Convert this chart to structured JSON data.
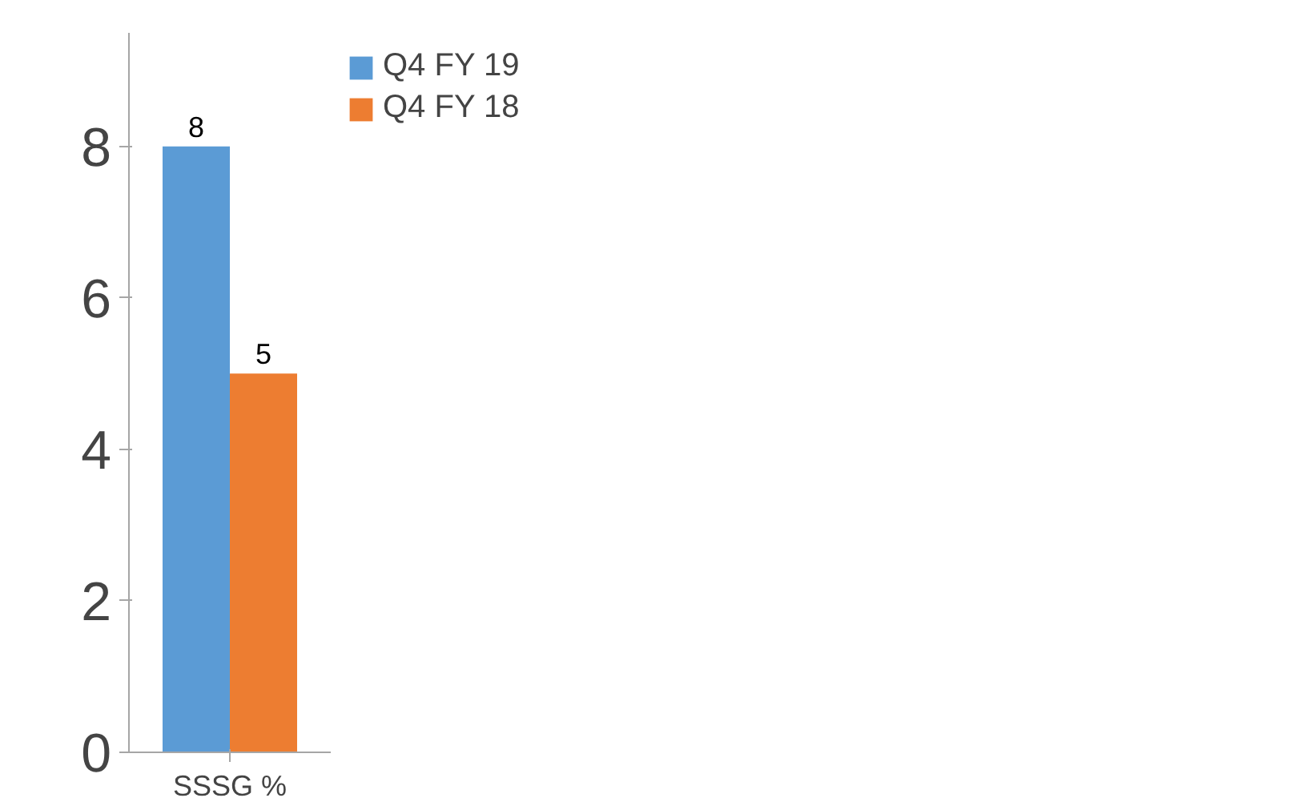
{
  "chart_data": {
    "type": "bar",
    "categories": [
      "SSSG %"
    ],
    "series": [
      {
        "name": "Q4 FY 19",
        "color": "#5b9bd5",
        "values": [
          8
        ]
      },
      {
        "name": "Q4 FY 18",
        "color": "#ed7d31",
        "values": [
          5
        ]
      }
    ],
    "ylim": [
      0,
      9.5
    ],
    "yticks": [
      0,
      2,
      4,
      6,
      8
    ],
    "grid": false,
    "legend": "right",
    "data_labels": true
  }
}
